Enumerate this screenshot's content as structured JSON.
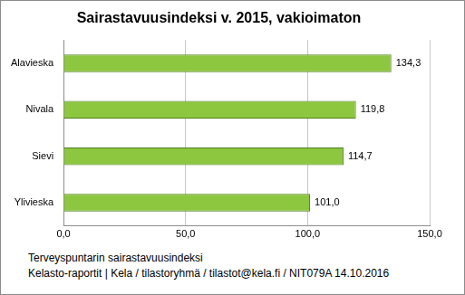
{
  "chart_data": {
    "type": "bar",
    "title": "Sairastavuusindeksi v. 2015, vakioimaton",
    "categories": [
      "Alavieska",
      "Nivala",
      "Sievi",
      "Ylivieska"
    ],
    "values": [
      134.3,
      119.8,
      114.7,
      101.0
    ],
    "value_labels": [
      "134,3",
      "119,8",
      "114,7",
      "101,0"
    ],
    "color": "#8dc63f",
    "orientation": "horizontal",
    "data_labels": true,
    "xlim": [
      0,
      150
    ],
    "xticks": [
      {
        "value": 0,
        "label": "0,0"
      },
      {
        "value": 50,
        "label": "50,0"
      },
      {
        "value": 100,
        "label": "100,0"
      },
      {
        "value": 150,
        "label": "150,0"
      }
    ],
    "grid": true,
    "annotations": [
      "Terveyspuntarin sairastavuusindeksi",
      "Kelasto-raportit | Kela / tilastoryhmä / tilastot@kela.fi / NIT079A  14.10.2016"
    ]
  }
}
